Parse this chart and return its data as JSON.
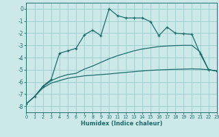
{
  "background_color": "#cce8e8",
  "grid_color": "#99cccc",
  "line_color": "#1a6b6b",
  "xlabel": "Humidex (Indice chaleur)",
  "xlim": [
    0,
    23
  ],
  "ylim": [
    -8.5,
    0.5
  ],
  "yticks": [
    0,
    -1,
    -2,
    -3,
    -4,
    -5,
    -6,
    -7,
    -8
  ],
  "xticks": [
    0,
    1,
    2,
    3,
    4,
    5,
    6,
    7,
    8,
    9,
    10,
    11,
    12,
    13,
    14,
    15,
    16,
    17,
    18,
    19,
    20,
    21,
    22,
    23
  ],
  "series1_x": [
    0,
    1,
    2,
    3,
    4,
    5,
    6,
    7,
    8,
    9,
    10,
    11,
    12,
    13,
    14,
    15,
    16,
    17,
    18,
    19,
    20,
    21,
    22,
    23
  ],
  "series1_y": [
    -7.8,
    -7.2,
    -6.5,
    -6.1,
    -5.9,
    -5.7,
    -5.6,
    -5.5,
    -5.45,
    -5.4,
    -5.35,
    -5.28,
    -5.22,
    -5.16,
    -5.1,
    -5.05,
    -5.02,
    -4.99,
    -4.97,
    -4.95,
    -4.93,
    -4.95,
    -5.0,
    -5.1
  ],
  "series2_x": [
    0,
    1,
    2,
    3,
    4,
    5,
    6,
    7,
    8,
    9,
    10,
    11,
    12,
    13,
    14,
    15,
    16,
    17,
    18,
    19,
    20,
    21,
    22,
    23
  ],
  "series2_y": [
    -7.8,
    -7.2,
    -6.4,
    -5.9,
    -5.6,
    -5.4,
    -5.3,
    -4.95,
    -4.7,
    -4.4,
    -4.1,
    -3.85,
    -3.65,
    -3.45,
    -3.3,
    -3.2,
    -3.1,
    -3.05,
    -3.02,
    -3.0,
    -3.0,
    -3.55,
    -5.0,
    -5.1
  ],
  "series3_x": [
    0,
    1,
    2,
    3,
    4,
    5,
    6,
    7,
    8,
    9,
    10,
    11,
    12,
    13,
    14,
    15,
    16,
    17,
    18,
    19,
    20,
    21,
    22,
    23
  ],
  "series3_y": [
    -7.8,
    -7.2,
    -6.35,
    -5.8,
    -3.65,
    -3.45,
    -3.25,
    -2.15,
    -1.75,
    -2.2,
    0.0,
    -0.55,
    -0.75,
    -0.75,
    -0.75,
    -1.05,
    -2.2,
    -1.5,
    -2.0,
    -2.05,
    -2.1,
    -3.7,
    -5.0,
    -5.1
  ]
}
